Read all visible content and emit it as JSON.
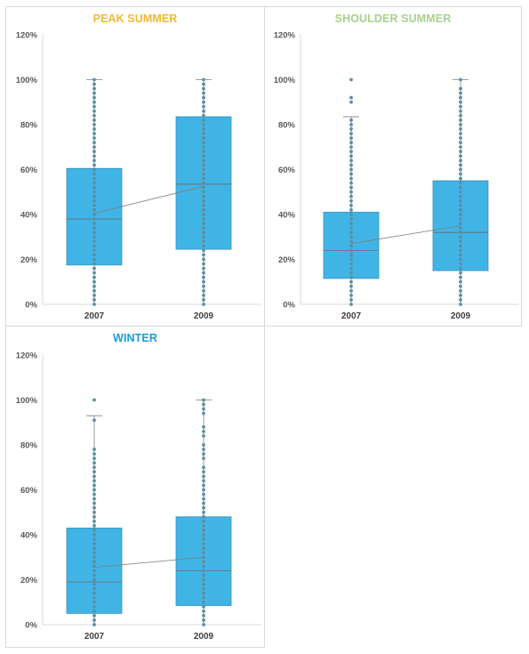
{
  "chart_data": [
    {
      "type": "box",
      "title": "PEAK SUMMER",
      "title_color": "#F2B933",
      "categories": [
        "2007",
        "2009"
      ],
      "y_tick_labels": [
        "0%",
        "20%",
        "40%",
        "60%",
        "80%",
        "100%",
        "120%"
      ],
      "ylim": [
        0,
        1.2
      ],
      "box_color": "#41B4E6",
      "point_color": "#5B8FA3",
      "series": [
        {
          "q1": 0.175,
          "median": 0.38,
          "q3": 0.605,
          "mean": 0.405,
          "whisker_low": 0.0,
          "whisker_high": 1.0,
          "points": [
            0.0,
            0.02,
            0.04,
            0.06,
            0.08,
            0.1,
            0.12,
            0.14,
            0.16,
            0.18,
            0.2,
            0.22,
            0.24,
            0.26,
            0.28,
            0.3,
            0.32,
            0.34,
            0.36,
            0.38,
            0.4,
            0.42,
            0.44,
            0.46,
            0.48,
            0.5,
            0.52,
            0.54,
            0.56,
            0.58,
            0.6,
            0.62,
            0.64,
            0.66,
            0.68,
            0.7,
            0.72,
            0.74,
            0.76,
            0.78,
            0.8,
            0.82,
            0.84,
            0.86,
            0.88,
            0.9,
            0.92,
            0.94,
            0.96,
            0.98,
            1.0
          ]
        },
        {
          "q1": 0.245,
          "median": 0.535,
          "q3": 0.835,
          "mean": 0.525,
          "whisker_low": 0.0,
          "whisker_high": 1.0,
          "points": [
            0.0,
            0.02,
            0.04,
            0.06,
            0.08,
            0.1,
            0.12,
            0.14,
            0.16,
            0.18,
            0.2,
            0.22,
            0.24,
            0.26,
            0.28,
            0.3,
            0.32,
            0.34,
            0.36,
            0.38,
            0.4,
            0.42,
            0.44,
            0.46,
            0.48,
            0.5,
            0.52,
            0.54,
            0.56,
            0.58,
            0.6,
            0.62,
            0.64,
            0.66,
            0.68,
            0.7,
            0.72,
            0.74,
            0.76,
            0.78,
            0.8,
            0.82,
            0.84,
            0.86,
            0.88,
            0.9,
            0.92,
            0.94,
            0.96,
            0.98,
            1.0
          ]
        }
      ]
    },
    {
      "type": "box",
      "title": "SHOULDER SUMMER",
      "title_color": "#A9D18E",
      "categories": [
        "2007",
        "2009"
      ],
      "y_tick_labels": [
        "0%",
        "20%",
        "40%",
        "60%",
        "80%",
        "100%",
        "120%"
      ],
      "ylim": [
        0,
        1.2
      ],
      "box_color": "#41B4E6",
      "point_color": "#5B8FA3",
      "series": [
        {
          "q1": 0.115,
          "median": 0.24,
          "q3": 0.41,
          "mean": 0.27,
          "whisker_low": 0.0,
          "whisker_high": 0.835,
          "points": [
            0.0,
            0.02,
            0.04,
            0.06,
            0.08,
            0.1,
            0.12,
            0.14,
            0.16,
            0.18,
            0.2,
            0.22,
            0.24,
            0.26,
            0.28,
            0.3,
            0.32,
            0.34,
            0.36,
            0.38,
            0.4,
            0.42,
            0.44,
            0.46,
            0.48,
            0.5,
            0.52,
            0.54,
            0.56,
            0.58,
            0.6,
            0.62,
            0.64,
            0.66,
            0.68,
            0.7,
            0.72,
            0.74,
            0.76,
            0.78,
            0.8,
            0.82,
            0.9,
            0.92,
            1.0
          ]
        },
        {
          "q1": 0.15,
          "median": 0.32,
          "q3": 0.55,
          "mean": 0.35,
          "whisker_low": 0.0,
          "whisker_high": 1.0,
          "points": [
            0.0,
            0.02,
            0.04,
            0.06,
            0.08,
            0.1,
            0.12,
            0.14,
            0.16,
            0.18,
            0.2,
            0.22,
            0.24,
            0.26,
            0.28,
            0.3,
            0.32,
            0.34,
            0.36,
            0.38,
            0.4,
            0.42,
            0.44,
            0.46,
            0.48,
            0.5,
            0.52,
            0.54,
            0.56,
            0.58,
            0.6,
            0.62,
            0.64,
            0.66,
            0.68,
            0.7,
            0.72,
            0.74,
            0.76,
            0.78,
            0.8,
            0.82,
            0.84,
            0.86,
            0.88,
            0.9,
            0.92,
            0.94,
            0.96,
            1.0
          ]
        }
      ]
    },
    {
      "type": "box",
      "title": "WINTER",
      "title_color": "#1A9BD7",
      "categories": [
        "2007",
        "2009"
      ],
      "y_tick_labels": [
        "0%",
        "20%",
        "40%",
        "60%",
        "80%",
        "100%",
        "120%"
      ],
      "ylim": [
        0,
        1.2
      ],
      "box_color": "#41B4E6",
      "point_color": "#5B8FA3",
      "series": [
        {
          "q1": 0.05,
          "median": 0.19,
          "q3": 0.43,
          "mean": 0.255,
          "whisker_low": 0.0,
          "whisker_high": 0.93,
          "points": [
            0.0,
            0.02,
            0.04,
            0.06,
            0.08,
            0.1,
            0.12,
            0.14,
            0.16,
            0.18,
            0.2,
            0.22,
            0.24,
            0.26,
            0.28,
            0.3,
            0.32,
            0.34,
            0.36,
            0.38,
            0.4,
            0.42,
            0.44,
            0.46,
            0.48,
            0.5,
            0.52,
            0.54,
            0.56,
            0.58,
            0.6,
            0.62,
            0.64,
            0.66,
            0.68,
            0.7,
            0.72,
            0.74,
            0.76,
            0.78,
            0.91,
            1.0
          ]
        },
        {
          "q1": 0.085,
          "median": 0.24,
          "q3": 0.48,
          "mean": 0.3,
          "whisker_low": 0.0,
          "whisker_high": 1.0,
          "points": [
            0.0,
            0.02,
            0.04,
            0.06,
            0.08,
            0.1,
            0.12,
            0.14,
            0.16,
            0.18,
            0.2,
            0.22,
            0.24,
            0.26,
            0.28,
            0.3,
            0.32,
            0.34,
            0.36,
            0.38,
            0.4,
            0.42,
            0.44,
            0.46,
            0.48,
            0.5,
            0.52,
            0.54,
            0.56,
            0.58,
            0.6,
            0.62,
            0.64,
            0.66,
            0.68,
            0.7,
            0.74,
            0.76,
            0.78,
            0.8,
            0.84,
            0.86,
            0.88,
            0.94,
            0.96,
            0.98,
            1.0
          ]
        }
      ]
    }
  ]
}
